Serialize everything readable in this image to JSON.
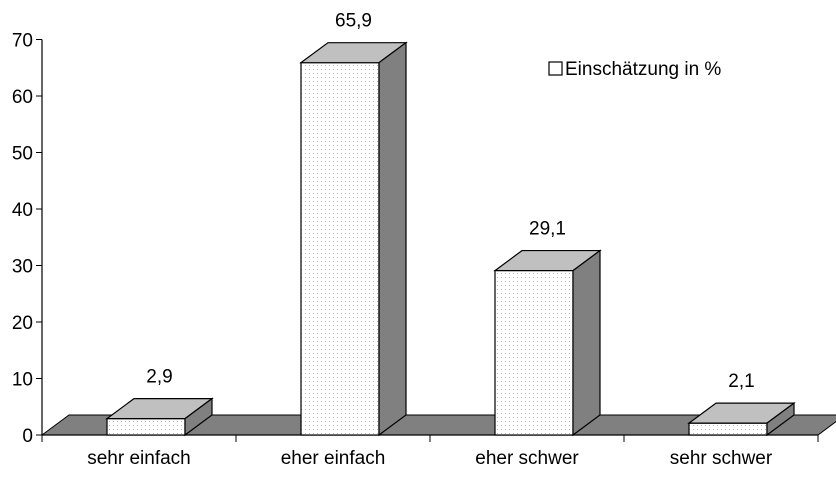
{
  "chart_data": {
    "type": "bar",
    "categories": [
      "sehr einfach",
      "eher einfach",
      "eher schwer",
      "sehr schwer"
    ],
    "series": [
      {
        "name": "Einschätzung in %",
        "values": [
          2.9,
          65.9,
          29.1,
          2.1
        ],
        "data_labels": [
          "2,9",
          "65,9",
          "29,1",
          "2,1"
        ]
      }
    ],
    "ylim": [
      0,
      70
    ],
    "yticks": [
      0,
      10,
      20,
      30,
      40,
      50,
      60,
      70
    ],
    "ytick_labels": [
      "0",
      "10",
      "20",
      "30",
      "40",
      "50",
      "60",
      "70"
    ],
    "grid": false,
    "legend_position": "top-right",
    "style": "3d-column",
    "colors": {
      "bar_front": "#ffffff",
      "bar_top": "#c0c0c0",
      "bar_side": "#808080",
      "floor": "#808080",
      "outline": "#000000"
    }
  }
}
